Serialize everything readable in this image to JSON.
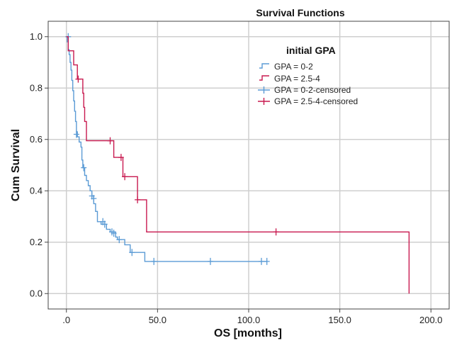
{
  "chart_data": {
    "type": "line",
    "title": "Survival Functions",
    "xlabel": "OS [months]",
    "ylabel": "Cum Survival",
    "xlim": [
      -10,
      210
    ],
    "ylim": [
      -0.06,
      1.06
    ],
    "x_ticks": [
      0,
      50,
      100,
      150,
      200
    ],
    "x_tick_labels": [
      ".0",
      "50.0",
      "100.0",
      "150.0",
      "200.0"
    ],
    "y_ticks": [
      0,
      0.2,
      0.4,
      0.6,
      0.8,
      1.0
    ],
    "y_tick_labels": [
      "0.0",
      "0.2",
      "0.4",
      "0.6",
      "0.8",
      "1.0"
    ],
    "grid": true,
    "legend": {
      "title": "initial GPA",
      "placement": "top-right",
      "entries": [
        "GPA = 0-2",
        "GPA = 2.5-4",
        "GPA = 0-2-censored",
        "GPA = 2.5-4-censored"
      ]
    },
    "series": [
      {
        "name": "GPA = 0-2",
        "color": "#5b9bd5",
        "steps": [
          [
            0,
            1.0
          ],
          [
            0.5,
            0.98
          ],
          [
            1,
            0.95
          ],
          [
            1.5,
            0.93
          ],
          [
            2,
            0.9
          ],
          [
            2.5,
            0.87
          ],
          [
            3,
            0.83
          ],
          [
            3.5,
            0.79
          ],
          [
            4,
            0.75
          ],
          [
            4.5,
            0.71
          ],
          [
            5,
            0.67
          ],
          [
            5.5,
            0.63
          ],
          [
            6,
            0.61
          ],
          [
            7,
            0.59
          ],
          [
            8,
            0.57
          ],
          [
            8.5,
            0.52
          ],
          [
            9,
            0.49
          ],
          [
            10,
            0.46
          ],
          [
            11,
            0.44
          ],
          [
            12,
            0.42
          ],
          [
            13,
            0.4
          ],
          [
            14,
            0.38
          ],
          [
            15,
            0.35
          ],
          [
            16,
            0.32
          ],
          [
            17,
            0.28
          ],
          [
            19,
            0.27
          ],
          [
            22,
            0.25
          ],
          [
            24,
            0.24
          ],
          [
            27,
            0.22
          ],
          [
            28,
            0.21
          ],
          [
            32,
            0.19
          ],
          [
            35,
            0.16
          ],
          [
            43,
            0.125
          ],
          [
            110,
            0.125
          ]
        ],
        "censored": [
          [
            1,
            1.0
          ],
          [
            5.5,
            0.62
          ],
          [
            9.5,
            0.49
          ],
          [
            14,
            0.38
          ],
          [
            15,
            0.37
          ],
          [
            20,
            0.28
          ],
          [
            21,
            0.27
          ],
          [
            25,
            0.24
          ],
          [
            26,
            0.235
          ],
          [
            29,
            0.21
          ],
          [
            36,
            0.16
          ],
          [
            48,
            0.125
          ],
          [
            79,
            0.125
          ],
          [
            107,
            0.125
          ],
          [
            110,
            0.125
          ]
        ]
      },
      {
        "name": "GPA = 2.5-4",
        "color": "#c8194f",
        "steps": [
          [
            0,
            1.0
          ],
          [
            1,
            0.945
          ],
          [
            4,
            0.89
          ],
          [
            6,
            0.835
          ],
          [
            9,
            0.78
          ],
          [
            9.5,
            0.725
          ],
          [
            10,
            0.67
          ],
          [
            11,
            0.595
          ],
          [
            26,
            0.53
          ],
          [
            31,
            0.455
          ],
          [
            39,
            0.365
          ],
          [
            44,
            0.24
          ],
          [
            188,
            0.24
          ],
          [
            188,
            0.0
          ]
        ],
        "censored": [
          [
            6.5,
            0.835
          ],
          [
            24,
            0.595
          ],
          [
            30,
            0.53
          ],
          [
            32,
            0.455
          ],
          [
            39,
            0.365
          ],
          [
            115,
            0.24
          ]
        ]
      }
    ]
  }
}
